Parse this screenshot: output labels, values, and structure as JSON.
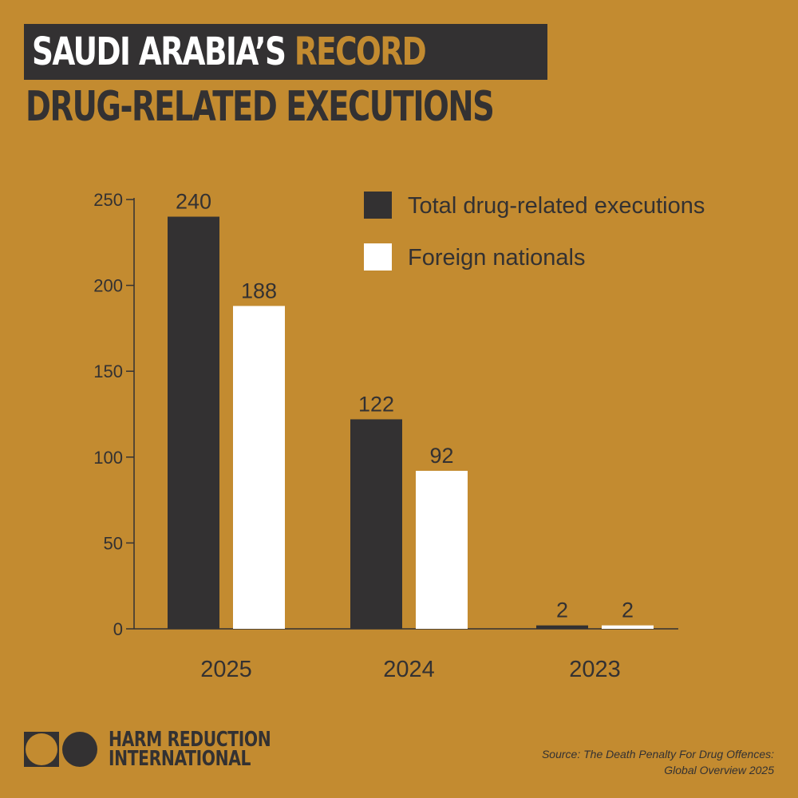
{
  "header": {
    "title_part1": "SAUDI ARABIA’S ",
    "title_accent": "RECORD",
    "title_line2": "DRUG-RELATED EXECUTIONS"
  },
  "colors": {
    "background": "#c38b30",
    "dark": "#333132",
    "light": "#ffffff"
  },
  "chart_data": {
    "type": "bar",
    "categories": [
      "2025",
      "2024",
      "2023"
    ],
    "series": [
      {
        "name": "Total drug-related executions",
        "color": "#333132",
        "values": [
          240,
          122,
          2
        ]
      },
      {
        "name": "Foreign nationals",
        "color": "#ffffff",
        "values": [
          188,
          92,
          2
        ]
      }
    ],
    "data_labels": [
      [
        "240",
        "122",
        "2"
      ],
      [
        "188",
        "92",
        "2"
      ]
    ],
    "yticks": [
      "0",
      "50",
      "100",
      "150",
      "200",
      "250"
    ],
    "ylim": [
      0,
      250
    ],
    "legend": "top-right",
    "grid": false
  },
  "footer": {
    "logo_line1": "HARM REDUCTION",
    "logo_line2": "INTERNATIONAL",
    "source_line1": "Source: The Death Penalty For Drug Offences:",
    "source_line2": "Global Overview 2025"
  }
}
